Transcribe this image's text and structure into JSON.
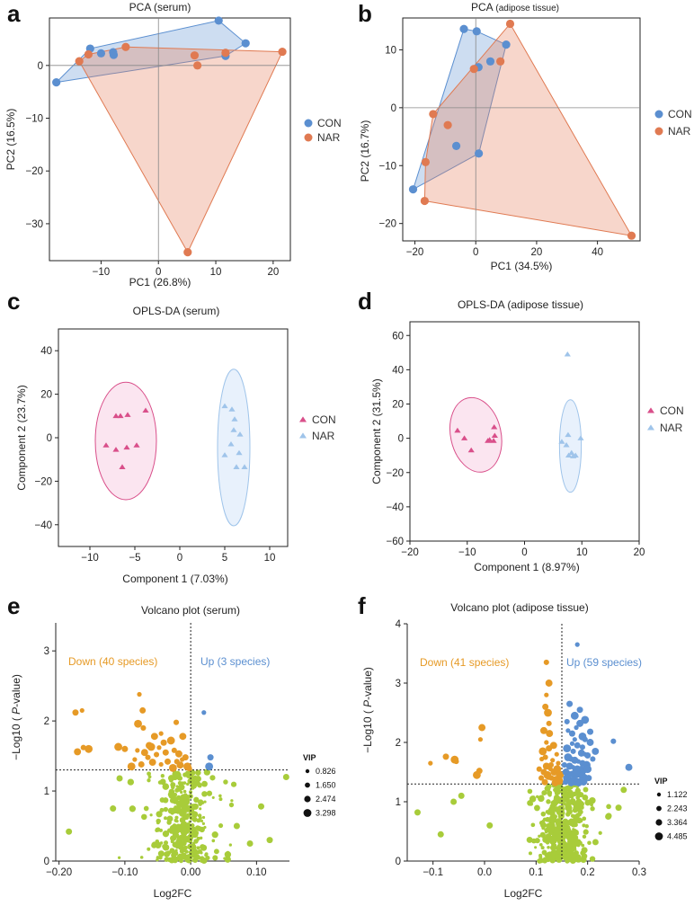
{
  "colors": {
    "con": "#5b8fd0",
    "nar": "#e07a52",
    "con_opls": "#9fc4ea",
    "nar_opls": "#d94f8a",
    "con_fill": "rgba(91,143,208,0.30)",
    "nar_fill": "rgba(230,128,92,0.32)",
    "down": "#e69a26",
    "up": "#5b8fd0",
    "ns": "#a8cc3a"
  },
  "chart_data": [
    {
      "panel": "a",
      "type": "scatter",
      "title": "PCA (serum)",
      "xlabel": "PC1 (26.8%)",
      "ylabel": "PC2 (16.5%)",
      "xlim": [
        -19,
        23
      ],
      "ylim": [
        -37,
        9
      ],
      "xticks": [
        -10,
        0,
        10,
        20
      ],
      "yticks": [
        0,
        -10,
        -20,
        -30
      ],
      "legend": [
        "CON",
        "NAR"
      ],
      "series": [
        {
          "name": "CON",
          "hull": true,
          "points": [
            [
              -17.8,
              -3.2
            ],
            [
              -11.9,
              3.2
            ],
            [
              -10,
              2.3
            ],
            [
              -7.9,
              2.5
            ],
            [
              -7.8,
              2
            ],
            [
              10.5,
              8.5
            ],
            [
              11.7,
              1.8
            ],
            [
              15.2,
              4.2
            ]
          ]
        },
        {
          "name": "NAR",
          "hull": true,
          "points": [
            [
              -13.8,
              0.8
            ],
            [
              -12.2,
              2.1
            ],
            [
              -5.7,
              3.5
            ],
            [
              6.3,
              1.9
            ],
            [
              6.8,
              0
            ],
            [
              11.7,
              2.4
            ],
            [
              21.6,
              2.6
            ],
            [
              5.1,
              -35.4
            ]
          ]
        }
      ]
    },
    {
      "panel": "b",
      "type": "scatter",
      "title": "PCA",
      "title_suffix": "(adipose tissue)",
      "xlabel": "PC1 (34.5%)",
      "ylabel": "PC2 (16.7%)",
      "xlim": [
        -24,
        54
      ],
      "ylim": [
        -23,
        15.5
      ],
      "xticks": [
        -20,
        0,
        20,
        40
      ],
      "yticks": [
        10,
        0,
        -10,
        -20
      ],
      "legend": [
        "CON",
        "NAR"
      ],
      "series": [
        {
          "name": "CON",
          "hull": true,
          "points": [
            [
              -20.6,
              -14.1
            ],
            [
              -3.9,
              13.6
            ],
            [
              0.3,
              13.2
            ],
            [
              0.9,
              7
            ],
            [
              10,
              10.9
            ],
            [
              4.8,
              8
            ],
            [
              -6.4,
              -6.6
            ],
            [
              1,
              -7.9
            ]
          ]
        },
        {
          "name": "NAR",
          "hull": true,
          "points": [
            [
              -16.8,
              -16.1
            ],
            [
              -16.5,
              -9.4
            ],
            [
              -14,
              -1.1
            ],
            [
              -9.2,
              -3
            ],
            [
              -0.6,
              6.7
            ],
            [
              8.1,
              8
            ],
            [
              11.3,
              14.5
            ],
            [
              51.2,
              -22.1
            ]
          ]
        }
      ]
    },
    {
      "panel": "c",
      "type": "scatter",
      "title": "OPLS-DA (serum)",
      "xlabel": "Component 1 (7.03%)",
      "ylabel": "Component 2 (23.7%)",
      "xlim": [
        -13.5,
        12
      ],
      "ylim": [
        -50,
        50
      ],
      "xticks": [
        -10,
        -5,
        0,
        5,
        10
      ],
      "yticks": [
        40,
        20,
        0,
        -20,
        -40
      ],
      "legend": [
        "CON",
        "NAR"
      ],
      "series": [
        {
          "name": "CON",
          "marker": "triangle",
          "ellipse": {
            "cx": -6.0,
            "cy": -1.5,
            "rx": 3.4,
            "ry": 27
          },
          "points": [
            [
              -7.1,
              10
            ],
            [
              -6.6,
              10
            ],
            [
              -5.8,
              10.5
            ],
            [
              -3.8,
              12.5
            ],
            [
              -8.2,
              -3.5
            ],
            [
              -7.1,
              -5.5
            ],
            [
              -5.9,
              -4.5
            ],
            [
              -4.8,
              -3.5
            ],
            [
              -6.4,
              -13.5
            ]
          ]
        },
        {
          "name": "NAR",
          "marker": "triangle",
          "ellipse": {
            "cx": 6.0,
            "cy": -4.5,
            "rx": 1.8,
            "ry": 36
          },
          "points": [
            [
              5.0,
              14.5
            ],
            [
              5.8,
              13
            ],
            [
              6.1,
              8.5
            ],
            [
              6.0,
              3.5
            ],
            [
              6.7,
              1.5
            ],
            [
              5.7,
              -3
            ],
            [
              6.6,
              -7
            ],
            [
              5.0,
              -8
            ],
            [
              6.3,
              -13.5
            ],
            [
              7.2,
              -13.5
            ]
          ]
        }
      ]
    },
    {
      "panel": "d",
      "type": "scatter",
      "title": "OPLS-DA (adipose tissue)",
      "xlabel": "Component 1 (8.97%)",
      "ylabel": "Component 2 (31.5%)",
      "xlim": [
        -20,
        20
      ],
      "ylim": [
        -60,
        68
      ],
      "xticks": [
        -20,
        -10,
        0,
        10,
        20
      ],
      "yticks": [
        60,
        40,
        20,
        0,
        -20,
        -40,
        -60
      ],
      "legend": [
        "CON",
        "NAR"
      ],
      "series": [
        {
          "name": "CON",
          "marker": "triangle",
          "ellipse": {
            "cx": -8.5,
            "cy": 2.0,
            "rx": 4.4,
            "ry": 22,
            "rotate": -12
          },
          "points": [
            [
              -11.7,
              4.5
            ],
            [
              -10.5,
              0
            ],
            [
              -9.3,
              -7
            ],
            [
              -6.4,
              -1.5
            ],
            [
              -6.1,
              -1
            ],
            [
              -5.2,
              1.5
            ],
            [
              -5.3,
              6.5
            ],
            [
              -5.4,
              -1.5
            ]
          ]
        },
        {
          "name": "NAR",
          "marker": "triangle",
          "ellipse": {
            "cx": 8.0,
            "cy": -4.5,
            "rx": 1.9,
            "ry": 27
          },
          "points": [
            [
              7.5,
              49
            ],
            [
              7.3,
              -4
            ],
            [
              8.2,
              -8.5
            ],
            [
              7.7,
              -10
            ],
            [
              8.5,
              -10.5
            ],
            [
              8.9,
              -10
            ],
            [
              6.5,
              -2
            ],
            [
              7.6,
              2
            ],
            [
              9.8,
              0
            ]
          ]
        }
      ]
    },
    {
      "panel": "e",
      "type": "scatter",
      "title": "Volcano plot (serum)",
      "xlabel": "Log2FC",
      "ylabel": "−Log10 ( P-value)",
      "xlim": [
        -0.205,
        0.15
      ],
      "ylim": [
        0,
        3.4
      ],
      "xticks": [
        -0.2,
        -0.1,
        0.0,
        0.1
      ],
      "yticks": [
        0,
        1,
        2,
        3
      ],
      "threshold_y": 1.3,
      "threshold_x": 0,
      "annotations": {
        "down": "Down (40 species)",
        "up": "Up (3 species)"
      },
      "vip_legend": {
        "title": "VIP",
        "values": [
          "0.826",
          "1.650",
          "2.474",
          "3.298"
        ]
      },
      "series": [
        {
          "name": "Down",
          "points": [
            [
              -0.165,
              2.15
            ],
            [
              -0.175,
              2.12
            ],
            [
              -0.155,
              1.6
            ],
            [
              -0.163,
              1.62
            ],
            [
              -0.172,
              1.56
            ],
            [
              -0.078,
              2.38
            ],
            [
              -0.073,
              2.15
            ],
            [
              -0.08,
              1.96
            ],
            [
              -0.072,
              1.9
            ],
            [
              -0.055,
              1.78
            ],
            [
              -0.045,
              1.82
            ],
            [
              -0.041,
              1.69
            ],
            [
              -0.06,
              1.63
            ],
            [
              -0.052,
              1.52
            ],
            [
              -0.07,
              1.55
            ],
            [
              -0.081,
              1.58
            ],
            [
              -0.1,
              1.6
            ],
            [
              -0.11,
              1.63
            ],
            [
              -0.065,
              1.48
            ],
            [
              -0.058,
              1.41
            ],
            [
              -0.045,
              1.38
            ],
            [
              -0.035,
              1.42
            ],
            [
              -0.03,
              1.72
            ],
            [
              -0.025,
              1.58
            ],
            [
              -0.018,
              1.53
            ],
            [
              -0.013,
              1.45
            ],
            [
              -0.008,
              1.48
            ],
            [
              -0.005,
              1.35
            ],
            [
              -0.002,
              1.32
            ],
            [
              -0.012,
              1.78
            ],
            [
              -0.048,
              1.62
            ],
            [
              -0.038,
              1.55
            ],
            [
              -0.027,
              1.33
            ],
            [
              -0.021,
              1.42
            ],
            [
              -0.016,
              1.37
            ],
            [
              -0.085,
              1.45
            ],
            [
              -0.075,
              1.38
            ],
            [
              -0.09,
              1.35
            ],
            [
              -0.022,
              1.98
            ],
            [
              -0.063,
              1.65
            ]
          ]
        },
        {
          "name": "Up",
          "points": [
            [
              0.02,
              2.12
            ],
            [
              0.03,
              1.48
            ],
            [
              0.028,
              1.35
            ]
          ]
        }
      ]
    },
    {
      "panel": "f",
      "type": "scatter",
      "title": "Volcano plot (adipose tissue)",
      "xlabel": "Log2FC",
      "ylabel": "−Log10 ( P-value)",
      "xlim": [
        -0.15,
        0.3
      ],
      "ylim": [
        0,
        4
      ],
      "xticks": [
        -0.1,
        0.0,
        0.1,
        0.2,
        0.3
      ],
      "yticks": [
        0,
        1,
        2,
        3,
        4
      ],
      "threshold_y": 1.3,
      "threshold_x": 0.15,
      "annotations": {
        "down": "Down (41 species)",
        "up": "Up (59 species)"
      },
      "vip_legend": {
        "title": "VIP",
        "values": [
          "1.122",
          "2.243",
          "3.364",
          "4.485"
        ]
      },
      "series": [
        {
          "name": "Down",
          "points": [
            [
              -0.105,
              1.65
            ],
            [
              -0.075,
              1.76
            ],
            [
              -0.058,
              1.71
            ],
            [
              -0.055,
              1.68
            ],
            [
              -0.005,
              2.25
            ],
            [
              -0.008,
              2.05
            ],
            [
              -0.01,
              1.52
            ],
            [
              -0.015,
              1.45
            ],
            [
              0.12,
              3.35
            ],
            [
              0.125,
              3.0
            ],
            [
              0.12,
              2.8
            ],
            [
              0.118,
              2.6
            ],
            [
              0.123,
              2.5
            ],
            [
              0.125,
              2.32
            ],
            [
              0.115,
              2.2
            ],
            [
              0.12,
              2.0
            ],
            [
              0.125,
              1.9
            ],
            [
              0.113,
              1.85
            ],
            [
              0.118,
              1.75
            ],
            [
              0.12,
              1.6
            ],
            [
              0.128,
              1.55
            ],
            [
              0.115,
              1.5
            ],
            [
              0.122,
              1.45
            ],
            [
              0.13,
              1.4
            ],
            [
              0.135,
              1.5
            ],
            [
              0.14,
              1.8
            ],
            [
              0.138,
              1.38
            ],
            [
              0.145,
              1.35
            ],
            [
              0.11,
              1.4
            ],
            [
              0.126,
              2.15
            ],
            [
              0.132,
              1.7
            ],
            [
              0.117,
              1.33
            ],
            [
              0.141,
              1.55
            ],
            [
              0.129,
              1.62
            ],
            [
              0.134,
              1.95
            ],
            [
              0.111,
              1.72
            ],
            [
              0.124,
              1.42
            ],
            [
              0.146,
              1.45
            ],
            [
              0.106,
              1.55
            ],
            [
              0.137,
              1.32
            ],
            [
              0.143,
              1.65
            ]
          ]
        },
        {
          "name": "Up",
          "points": [
            [
              0.18,
              3.65
            ],
            [
              0.165,
              2.65
            ],
            [
              0.175,
              2.45
            ],
            [
              0.16,
              2.35
            ],
            [
              0.185,
              2.32
            ],
            [
              0.178,
              2.25
            ],
            [
              0.17,
              2.15
            ],
            [
              0.19,
              2.1
            ],
            [
              0.195,
              2.05
            ],
            [
              0.205,
              2.0
            ],
            [
              0.17,
              1.98
            ],
            [
              0.18,
              1.95
            ],
            [
              0.16,
              1.9
            ],
            [
              0.172,
              1.85
            ],
            [
              0.188,
              1.82
            ],
            [
              0.195,
              1.8
            ],
            [
              0.2,
              1.78
            ],
            [
              0.162,
              1.75
            ],
            [
              0.168,
              1.72
            ],
            [
              0.175,
              1.7
            ],
            [
              0.182,
              1.68
            ],
            [
              0.19,
              1.65
            ],
            [
              0.198,
              1.62
            ],
            [
              0.155,
              1.62
            ],
            [
              0.165,
              1.6
            ],
            [
              0.172,
              1.58
            ],
            [
              0.18,
              1.56
            ],
            [
              0.187,
              1.54
            ],
            [
              0.193,
              1.52
            ],
            [
              0.158,
              1.5
            ],
            [
              0.164,
              1.48
            ],
            [
              0.17,
              1.47
            ],
            [
              0.177,
              1.46
            ],
            [
              0.184,
              1.45
            ],
            [
              0.19,
              1.44
            ],
            [
              0.196,
              1.42
            ],
            [
              0.202,
              1.4
            ],
            [
              0.16,
              1.4
            ],
            [
              0.166,
              1.38
            ],
            [
              0.173,
              1.37
            ],
            [
              0.18,
              1.36
            ],
            [
              0.186,
              1.35
            ],
            [
              0.192,
              1.34
            ],
            [
              0.157,
              1.33
            ],
            [
              0.168,
              1.32
            ],
            [
              0.176,
              1.31
            ],
            [
              0.183,
              1.31
            ],
            [
              0.2,
              1.55
            ],
            [
              0.21,
              1.72
            ],
            [
              0.215,
              1.85
            ],
            [
              0.175,
              2.05
            ],
            [
              0.185,
              2.55
            ],
            [
              0.195,
              2.38
            ],
            [
              0.25,
              2.02
            ],
            [
              0.28,
              1.58
            ],
            [
              0.162,
              2.2
            ],
            [
              0.205,
              2.18
            ],
            [
              0.178,
              1.52
            ],
            [
              0.19,
              1.92
            ]
          ]
        }
      ]
    }
  ]
}
